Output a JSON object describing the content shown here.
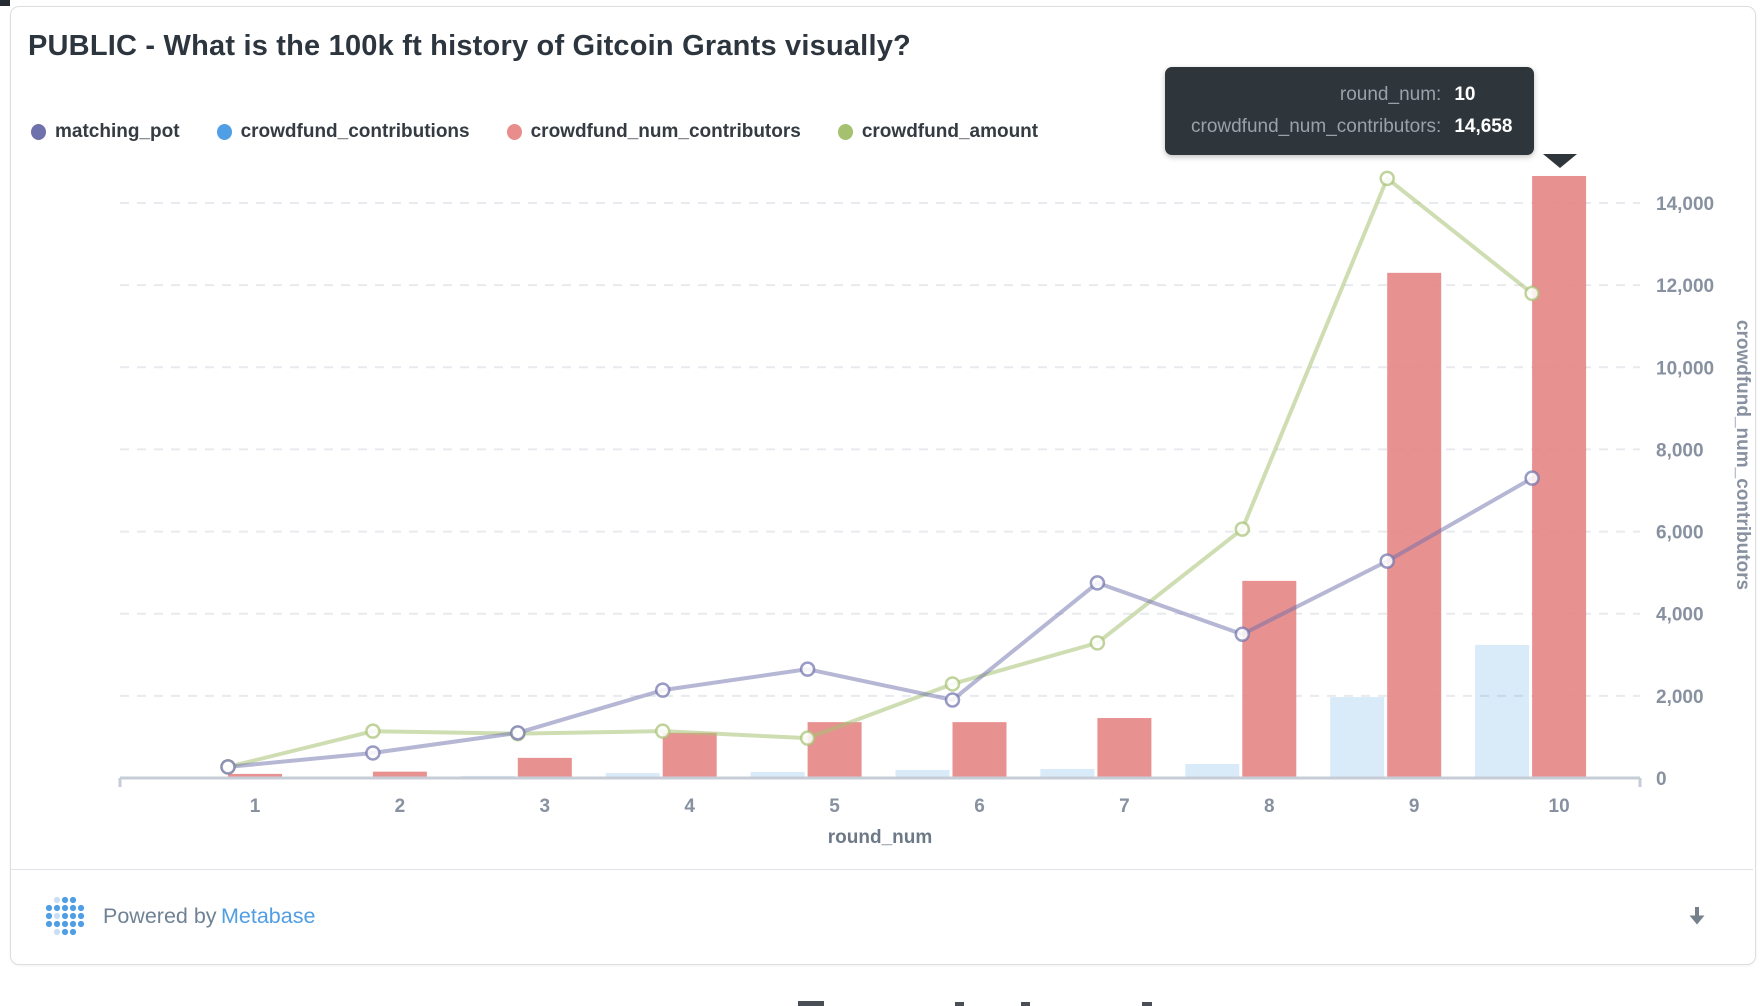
{
  "card": {
    "title": "PUBLIC - What is the 100k ft history of Gitcoin Grants visually?"
  },
  "legend": {
    "items": [
      {
        "label": "matching_pot",
        "color": "#6f71ac"
      },
      {
        "label": "crowdfund_contributions",
        "color": "#509ee3"
      },
      {
        "label": "crowdfund_num_contributors",
        "color": "#e88c8c"
      },
      {
        "label": "crowdfund_amount",
        "color": "#a5c16f"
      }
    ]
  },
  "tooltip": {
    "rows": [
      {
        "label": "round_num:",
        "value": "10"
      },
      {
        "label": "crowdfund_num_contributors:",
        "value": "14,658"
      }
    ]
  },
  "chart_data": {
    "type": "combo",
    "title": "PUBLIC - What is the 100k ft history of Gitcoin Grants visually?",
    "xlabel": "round_num",
    "ylabel_right": "crowdfund_num_contributors",
    "categories": [
      "1",
      "2",
      "3",
      "4",
      "5",
      "6",
      "7",
      "8",
      "9",
      "10"
    ],
    "y_axis": {
      "min": 0,
      "max": 14658,
      "tick_step": 2000,
      "tick_labels": [
        "0",
        "2,000",
        "4,000",
        "6,000",
        "8,000",
        "10,000",
        "12,000",
        "14,000"
      ],
      "side": "right"
    },
    "grid": "horizontal-dashed",
    "legend_position": "top-left",
    "series": [
      {
        "name": "matching_pot",
        "type": "line",
        "color": "#6f71ac",
        "values": [
          270,
          610,
          1100,
          2140,
          2650,
          1900,
          4750,
          3500,
          5280,
          7300
        ]
      },
      {
        "name": "crowdfund_contributions",
        "type": "bar",
        "color": "#509ee3",
        "values": [
          10,
          20,
          50,
          120,
          145,
          195,
          220,
          340,
          1970,
          3240
        ]
      },
      {
        "name": "crowdfund_num_contributors",
        "type": "bar",
        "color": "#e88c8c",
        "values": [
          100,
          155,
          490,
          1100,
          1360,
          1360,
          1460,
          4800,
          12300,
          14658
        ]
      },
      {
        "name": "crowdfund_amount",
        "type": "line",
        "color": "#a5c16f",
        "values": [
          270,
          1140,
          1080,
          1140,
          970,
          2290,
          3290,
          6060,
          14600,
          11800
        ]
      }
    ],
    "highlighted_point": {
      "series": "crowdfund_num_contributors",
      "category": "10",
      "value": "14,658"
    }
  },
  "footer": {
    "powered_by": "Powered by",
    "brand": "Metabase"
  },
  "colors": {
    "brand_blue": "#509ee3",
    "tooltip_bg": "#2e353b",
    "grid_line": "#e7eaee",
    "axis_line": "#c7cdd6",
    "tick_text": "#8791a0"
  }
}
